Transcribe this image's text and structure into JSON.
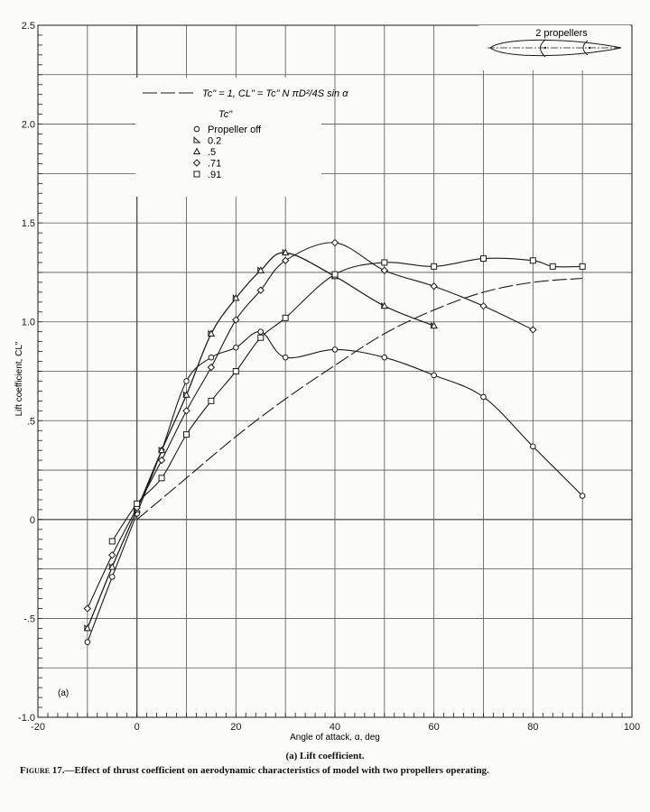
{
  "chart_data": {
    "type": "line",
    "title": "Lift coefficient",
    "panel_label": "(a)",
    "xlabel": "Angle of attack, α, deg",
    "ylabel": "Lift coefficient, CL\"",
    "xlim": [
      -20,
      100
    ],
    "ylim": [
      -1.0,
      2.5
    ],
    "x_ticks": [
      -20,
      0,
      20,
      40,
      60,
      80,
      100
    ],
    "x_tick_labels": [
      "-20",
      "0",
      "20",
      "40",
      "60",
      "80",
      "100"
    ],
    "y_ticks": [
      -1.0,
      -0.5,
      0,
      0.5,
      1.0,
      1.5,
      2.0,
      2.5
    ],
    "y_tick_labels": [
      "-1.0",
      "-.5",
      "0",
      ".5",
      "1.0",
      "1.5",
      "2.0",
      "2.5"
    ],
    "grid": true,
    "legend_position": "upper-left-inside",
    "legend_header": "Tc\"",
    "formula_line_label": "Tc\" = 1,  CL\" = Tc\" N πD²/4S sin α",
    "inset_label": "2 propellers",
    "series": [
      {
        "name": "Propeller off",
        "marker": "circle",
        "x": [
          -10,
          -5,
          0,
          5,
          10,
          15,
          20,
          25,
          30,
          40,
          50,
          60,
          70,
          80,
          90
        ],
        "values": [
          -0.62,
          -0.29,
          0.03,
          0.35,
          0.7,
          0.82,
          0.87,
          0.95,
          0.82,
          0.86,
          0.82,
          0.73,
          0.62,
          0.37,
          0.12
        ]
      },
      {
        "name": "0.2",
        "marker": "right-triangle",
        "x": [
          -10,
          -5,
          0,
          5,
          10,
          15,
          20,
          25,
          30,
          40,
          50,
          60
        ],
        "values": [
          -0.55,
          -0.24,
          0.05,
          0.35,
          0.63,
          0.94,
          1.12,
          1.26,
          1.35,
          1.23,
          1.08,
          0.98
        ]
      },
      {
        "name": ".5",
        "marker": "triangle",
        "x": [
          -10,
          -5,
          0,
          5,
          10,
          15,
          20,
          25,
          30,
          40,
          50,
          60
        ],
        "values": [
          -0.55,
          -0.24,
          0.05,
          0.35,
          0.63,
          0.94,
          1.12,
          1.26,
          1.35,
          1.23,
          1.08,
          0.98
        ]
      },
      {
        "name": ".71",
        "marker": "diamond",
        "x": [
          -10,
          -5,
          0,
          5,
          10,
          15,
          20,
          25,
          30,
          40,
          50,
          60,
          70,
          80
        ],
        "values": [
          -0.45,
          -0.18,
          0.06,
          0.3,
          0.55,
          0.77,
          1.01,
          1.16,
          1.31,
          1.4,
          1.26,
          1.18,
          1.08,
          0.96
        ]
      },
      {
        "name": ".91",
        "marker": "square",
        "x": [
          -5,
          0,
          5,
          10,
          15,
          20,
          25,
          30,
          40,
          50,
          60,
          70,
          80,
          84,
          90
        ],
        "values": [
          -0.11,
          0.08,
          0.21,
          0.43,
          0.6,
          0.75,
          0.92,
          1.02,
          1.24,
          1.3,
          1.28,
          1.32,
          1.31,
          1.28,
          1.28
        ]
      },
      {
        "name": "Tc\"=1 computed",
        "marker": "none",
        "style": "dashed",
        "x": [
          0,
          10,
          20,
          30,
          40,
          50,
          60,
          70,
          80,
          90
        ],
        "values": [
          0.0,
          0.21,
          0.42,
          0.61,
          0.78,
          0.94,
          1.06,
          1.15,
          1.2,
          1.22
        ]
      }
    ]
  },
  "captions": {
    "sub": "(a)  Lift coefficient.",
    "figure_number": "Figure 17.",
    "figure_text": "—Effect of thrust coefficient on aerodynamic characteristics of model with two propellers operating."
  }
}
